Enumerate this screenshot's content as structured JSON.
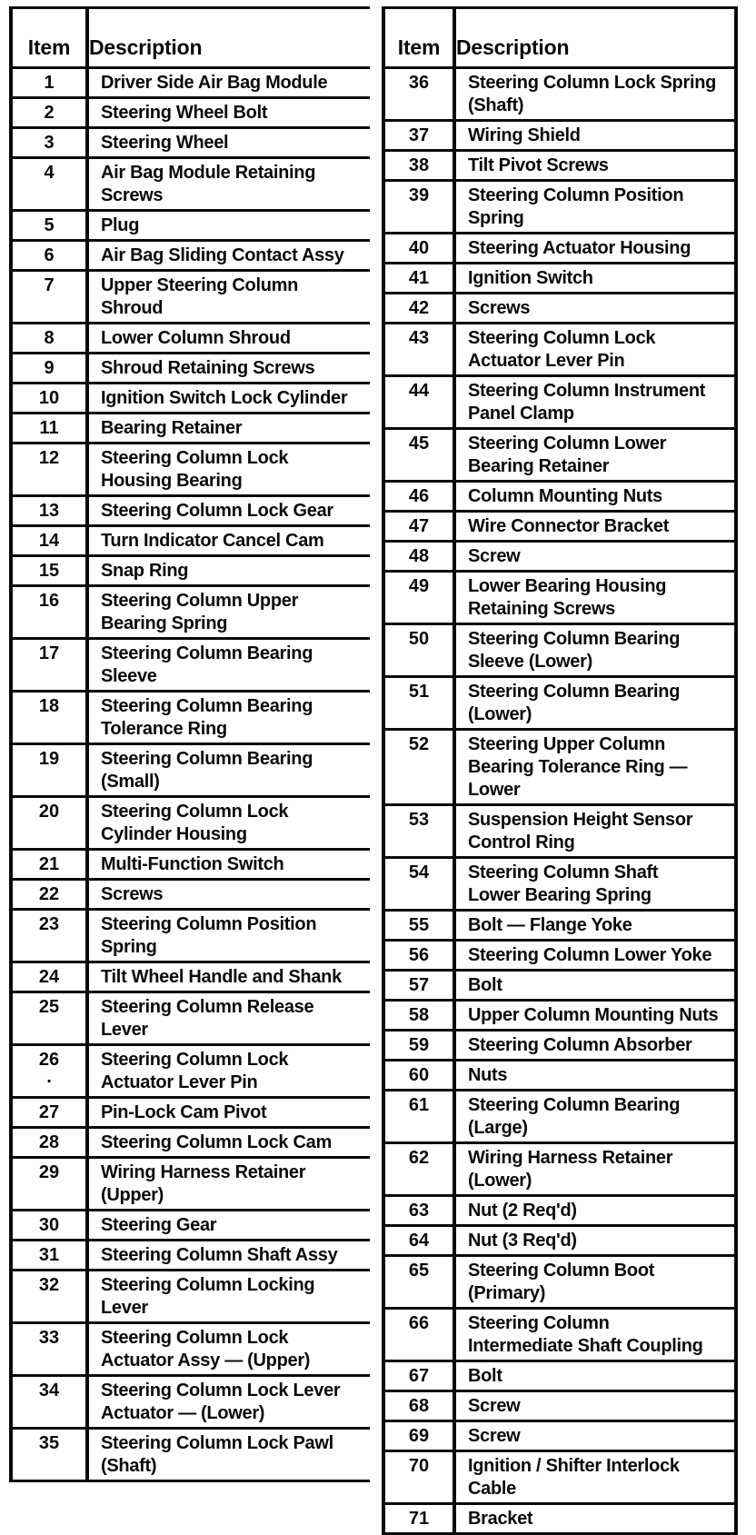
{
  "left_table": {
    "header": {
      "item": "Item",
      "description": "Description"
    },
    "rows": [
      {
        "item": "1",
        "desc": "Driver Side Air Bag Module"
      },
      {
        "item": "2",
        "desc": "Steering Wheel Bolt"
      },
      {
        "item": "3",
        "desc": "Steering Wheel"
      },
      {
        "item": "4",
        "desc": "Air Bag Module Retaining\nScrews"
      },
      {
        "item": "5",
        "desc": "Plug"
      },
      {
        "item": "6",
        "desc": "Air Bag Sliding Contact Assy"
      },
      {
        "item": "7",
        "desc": "Upper Steering Column\nShroud"
      },
      {
        "item": "8",
        "desc": "Lower Column Shroud"
      },
      {
        "item": "9",
        "desc": "Shroud Retaining Screws"
      },
      {
        "item": "10",
        "desc": "Ignition Switch Lock Cylinder"
      },
      {
        "item": "11",
        "desc": "Bearing Retainer"
      },
      {
        "item": "12",
        "desc": "Steering Column Lock\nHousing Bearing"
      },
      {
        "item": "13",
        "desc": "Steering Column Lock Gear"
      },
      {
        "item": "14",
        "desc": "Turn Indicator Cancel Cam"
      },
      {
        "item": "15",
        "desc": "Snap Ring"
      },
      {
        "item": "16",
        "desc": "Steering Column Upper\nBearing Spring"
      },
      {
        "item": "17",
        "desc": "Steering Column Bearing\nSleeve"
      },
      {
        "item": "18",
        "desc": "Steering Column Bearing\nTolerance Ring"
      },
      {
        "item": "19",
        "desc": "Steering Column Bearing\n(Small)"
      },
      {
        "item": "20",
        "desc": "Steering Column Lock\nCylinder Housing"
      },
      {
        "item": "21",
        "desc": "Multi-Function Switch"
      },
      {
        "item": "22",
        "desc": "Screws"
      },
      {
        "item": "23",
        "desc": "Steering Column Position\nSpring"
      },
      {
        "item": "24",
        "desc": "Tilt Wheel Handle and Shank"
      },
      {
        "item": "25",
        "desc": "Steering Column Release\nLever"
      },
      {
        "item": "26",
        "desc": "Steering Column Lock\nActuator Lever Pin",
        "dot": "."
      },
      {
        "item": "27",
        "desc": "Pin-Lock Cam Pivot"
      },
      {
        "item": "28",
        "desc": "Steering Column Lock Cam"
      },
      {
        "item": "29",
        "desc": "Wiring Harness Retainer\n(Upper)"
      },
      {
        "item": "30",
        "desc": "Steering Gear"
      },
      {
        "item": "31",
        "desc": "Steering Column Shaft Assy"
      },
      {
        "item": "32",
        "desc": "Steering Column Locking\nLever"
      },
      {
        "item": "33",
        "desc": "Steering Column Lock\nActuator Assy — (Upper)"
      },
      {
        "item": "34",
        "desc": "Steering Column Lock Lever\nActuator — (Lower)"
      },
      {
        "item": "35",
        "desc": "Steering Column Lock Pawl\n(Shaft)"
      }
    ]
  },
  "right_table": {
    "header": {
      "item": "Item",
      "description": "Description"
    },
    "rows": [
      {
        "item": "36",
        "desc": "Steering Column Lock Spring\n(Shaft)"
      },
      {
        "item": "37",
        "desc": "Wiring Shield"
      },
      {
        "item": "38",
        "desc": "Tilt Pivot Screws"
      },
      {
        "item": "39",
        "desc": "Steering Column Position\nSpring"
      },
      {
        "item": "40",
        "desc": "Steering Actuator Housing"
      },
      {
        "item": "41",
        "desc": "Ignition Switch"
      },
      {
        "item": "42",
        "desc": "Screws"
      },
      {
        "item": "43",
        "desc": "Steering Column Lock\nActuator Lever Pin"
      },
      {
        "item": "44",
        "desc": "Steering Column Instrument\nPanel Clamp"
      },
      {
        "item": "45",
        "desc": "Steering Column Lower\nBearing Retainer"
      },
      {
        "item": "46",
        "desc": "Column Mounting Nuts"
      },
      {
        "item": "47",
        "desc": "Wire Connector Bracket"
      },
      {
        "item": "48",
        "desc": "Screw"
      },
      {
        "item": "49",
        "desc": "Lower Bearing Housing\nRetaining Screws"
      },
      {
        "item": "50",
        "desc": "Steering Column Bearing\nSleeve (Lower)"
      },
      {
        "item": "51",
        "desc": "Steering Column Bearing\n(Lower)"
      },
      {
        "item": "52",
        "desc": "Steering Upper Column\nBearing Tolerance Ring —\nLower"
      },
      {
        "item": "53",
        "desc": "Suspension Height Sensor\nControl Ring"
      },
      {
        "item": "54",
        "desc": "Steering Column Shaft\nLower Bearing Spring"
      },
      {
        "item": "55",
        "desc": "Bolt — Flange Yoke"
      },
      {
        "item": "56",
        "desc": "Steering Column Lower Yoke"
      },
      {
        "item": "57",
        "desc": "Bolt"
      },
      {
        "item": "58",
        "desc": "Upper Column Mounting Nuts"
      },
      {
        "item": "59",
        "desc": "Steering Column Absorber"
      },
      {
        "item": "60",
        "desc": "Nuts"
      },
      {
        "item": "61",
        "desc": "Steering Column Bearing\n(Large)"
      },
      {
        "item": "62",
        "desc": "Wiring Harness Retainer\n(Lower)"
      },
      {
        "item": "63",
        "desc": "Nut (2 Req'd)"
      },
      {
        "item": "64",
        "desc": "Nut (3 Req'd)"
      },
      {
        "item": "65",
        "desc": "Steering Column Boot\n(Primary)"
      },
      {
        "item": "66",
        "desc": "Steering Column\nIntermediate Shaft Coupling"
      },
      {
        "item": "67",
        "desc": "Bolt"
      },
      {
        "item": "68",
        "desc": "Screw"
      },
      {
        "item": "69",
        "desc": "Screw"
      },
      {
        "item": "70",
        "desc": "Ignition / Shifter Interlock\nCable"
      },
      {
        "item": "71",
        "desc": "Bracket"
      }
    ]
  }
}
